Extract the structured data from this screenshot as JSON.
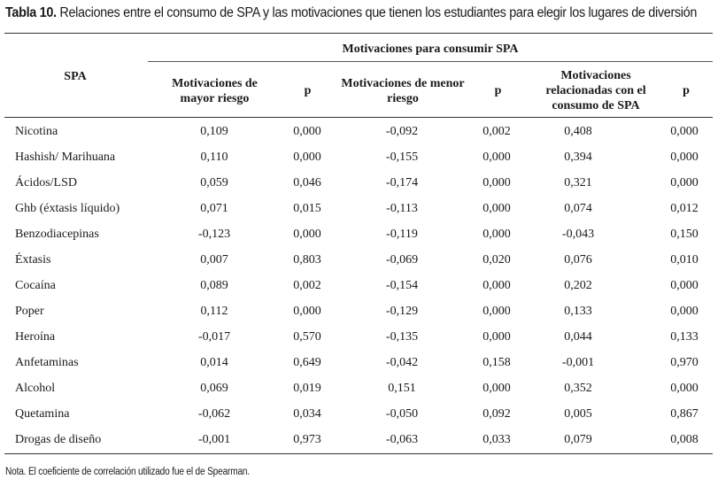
{
  "table": {
    "title_lead": "Tabla 10.",
    "title_rest": " Relaciones entre el consumo de SPA y las motivaciones que tienen los estudiantes para elegir los lugares de diversión",
    "group_header": "Motivaciones para consumir SPA",
    "row_header": "SPA",
    "columns": [
      "Motivaciones de mayor riesgo",
      "p",
      "Motivaciones de menor riesgo",
      "p",
      "Motivaciones relacionadas con el consumo de SPA",
      "p"
    ],
    "rows": [
      {
        "label": "Nicotina",
        "values": [
          "0,109",
          "0,000",
          "-0,092",
          "0,002",
          "0,408",
          "0,000"
        ]
      },
      {
        "label": "Hashish/ Marihuana",
        "values": [
          "0,110",
          "0,000",
          "-0,155",
          "0,000",
          "0,394",
          "0,000"
        ]
      },
      {
        "label": "Ácidos/LSD",
        "values": [
          "0,059",
          "0,046",
          "-0,174",
          "0,000",
          "0,321",
          "0,000"
        ]
      },
      {
        "label": "Ghb (éxtasis líquido)",
        "values": [
          "0,071",
          "0,015",
          "-0,113",
          "0,000",
          "0,074",
          "0,012"
        ]
      },
      {
        "label": "Benzodiacepinas",
        "values": [
          "-0,123",
          "0,000",
          "-0,119",
          "0,000",
          "-0,043",
          "0,150"
        ]
      },
      {
        "label": "Éxtasis",
        "values": [
          "0,007",
          "0,803",
          "-0,069",
          "0,020",
          "0,076",
          "0,010"
        ]
      },
      {
        "label": "Cocaína",
        "values": [
          "0,089",
          "0,002",
          "-0,154",
          "0,000",
          "0,202",
          "0,000"
        ]
      },
      {
        "label": "Poper",
        "values": [
          "0,112",
          "0,000",
          "-0,129",
          "0,000",
          "0,133",
          "0,000"
        ]
      },
      {
        "label": "Heroína",
        "values": [
          "-0,017",
          "0,570",
          "-0,135",
          "0,000",
          "0,044",
          "0,133"
        ]
      },
      {
        "label": "Anfetaminas",
        "values": [
          "0,014",
          "0,649",
          "-0,042",
          "0,158",
          "-0,001",
          "0,970"
        ]
      },
      {
        "label": "Alcohol",
        "values": [
          "0,069",
          "0,019",
          "0,151",
          "0,000",
          "0,352",
          "0,000"
        ]
      },
      {
        "label": "Quetamina",
        "values": [
          "-0,062",
          "0,034",
          "-0,050",
          "0,092",
          "0,005",
          "0,867"
        ]
      },
      {
        "label": "Drogas de diseño",
        "values": [
          "-0,001",
          "0,973",
          "-0,063",
          "0,033",
          "0,079",
          "0,008"
        ]
      }
    ],
    "note": "Nota. El coeficiente de correlación utilizado fue el de Spearman."
  }
}
